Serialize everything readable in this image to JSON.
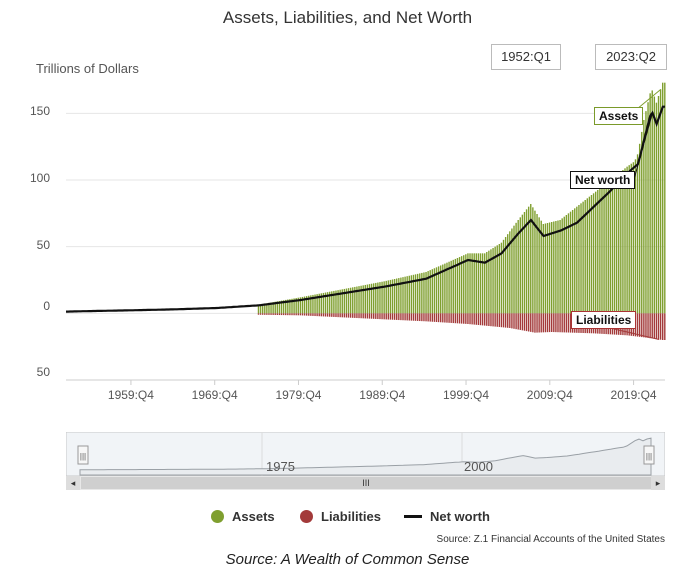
{
  "title": "Assets, Liabilities, and Net Worth",
  "y_axis_label": "Trillions of Dollars",
  "range": {
    "start": "1952:Q1",
    "end": "2023:Q2"
  },
  "callouts": {
    "assets": "Assets",
    "net_worth": "Net worth",
    "liabilities": "Liabilities"
  },
  "navigator": {
    "labels": [
      "1975",
      "2000"
    ],
    "thumb_grip": "III",
    "left_arrow": "◂",
    "right_arrow": "▸",
    "handle_grip": "|||"
  },
  "legend": [
    {
      "label": "Assets",
      "color": "#7f9f2f"
    },
    {
      "label": "Liabilities",
      "color": "#a33a3a"
    },
    {
      "label": "Net worth",
      "color": "#111111"
    }
  ],
  "credit": "Source: Z.1 Financial Accounts of the United States",
  "footer_source": "Source: A Wealth of Common Sense",
  "colors": {
    "assets": "#7f9f2f",
    "liabilities": "#a33a3a",
    "net_worth": "#111111",
    "grid": "#e6e6e6"
  },
  "chart_data": {
    "type": "bar",
    "title": "Assets, Liabilities, and Net Worth",
    "ylabel": "Trillions of Dollars",
    "ylim": [
      -50,
      175
    ],
    "y_ticks": [
      {
        "value": 150,
        "label": "150"
      },
      {
        "value": 100,
        "label": "100"
      },
      {
        "value": 50,
        "label": "50"
      },
      {
        "value": 0,
        "label": "0"
      },
      {
        "value": -50,
        "label": "50"
      }
    ],
    "x_range": [
      1952.0,
      2023.5
    ],
    "x_ticks": [
      {
        "value": 1959.75,
        "label": "1959:Q4"
      },
      {
        "value": 1969.75,
        "label": "1969:Q4"
      },
      {
        "value": 1979.75,
        "label": "1979:Q4"
      },
      {
        "value": 1989.75,
        "label": "1989:Q4"
      },
      {
        "value": 1999.75,
        "label": "1999:Q4"
      },
      {
        "value": 2009.75,
        "label": "2009:Q4"
      },
      {
        "value": 2019.75,
        "label": "2019:Q4"
      }
    ],
    "grid": true,
    "legend_position": "bottom-center",
    "series": [
      {
        "name": "Assets",
        "type": "bar",
        "x": [
          1952,
          1955,
          1960,
          1965,
          1970,
          1975,
          1980,
          1985,
          1990,
          1995,
          2000,
          2002,
          2004,
          2006,
          2007.5,
          2008.5,
          2009,
          2011,
          2013,
          2015,
          2017,
          2019,
          2019.9,
          2020.3,
          2021,
          2021.9,
          2022.5,
          2023.25
        ],
        "y": [
          1.5,
          2,
          2.5,
          3.5,
          4.5,
          6.5,
          12,
          18,
          24,
          31,
          45,
          45,
          53,
          70,
          82,
          72,
          67,
          70,
          80,
          90,
          100,
          110,
          114,
          120,
          145,
          169,
          158,
          173
        ]
      },
      {
        "name": "Liabilities",
        "type": "bar",
        "x": [
          1952,
          1960,
          1970,
          1980,
          1985,
          1990,
          1995,
          2000,
          2005,
          2008,
          2010,
          2015,
          2019,
          2021,
          2023.25
        ],
        "y": [
          -0.2,
          -0.3,
          -0.6,
          -1.5,
          -3,
          -4.5,
          -6,
          -8,
          -11,
          -14.5,
          -14,
          -15,
          -16.5,
          -18,
          -20
        ]
      },
      {
        "name": "Net worth",
        "type": "line",
        "x": [
          1952,
          1955,
          1960,
          1965,
          1970,
          1975,
          1980,
          1985,
          1990,
          1995,
          2000,
          2002,
          2004,
          2006,
          2007.5,
          2008.5,
          2009,
          2011,
          2013,
          2015,
          2017,
          2019,
          2019.9,
          2020.3,
          2021,
          2021.9,
          2022.5,
          2023.25
        ],
        "y": [
          1.3,
          1.7,
          2.3,
          3,
          4,
          6,
          10,
          15,
          20,
          26,
          40,
          38,
          45,
          60,
          70,
          62,
          58,
          62,
          68,
          80,
          92,
          105,
          110,
          112,
          130,
          152,
          142,
          155
        ]
      }
    ]
  }
}
